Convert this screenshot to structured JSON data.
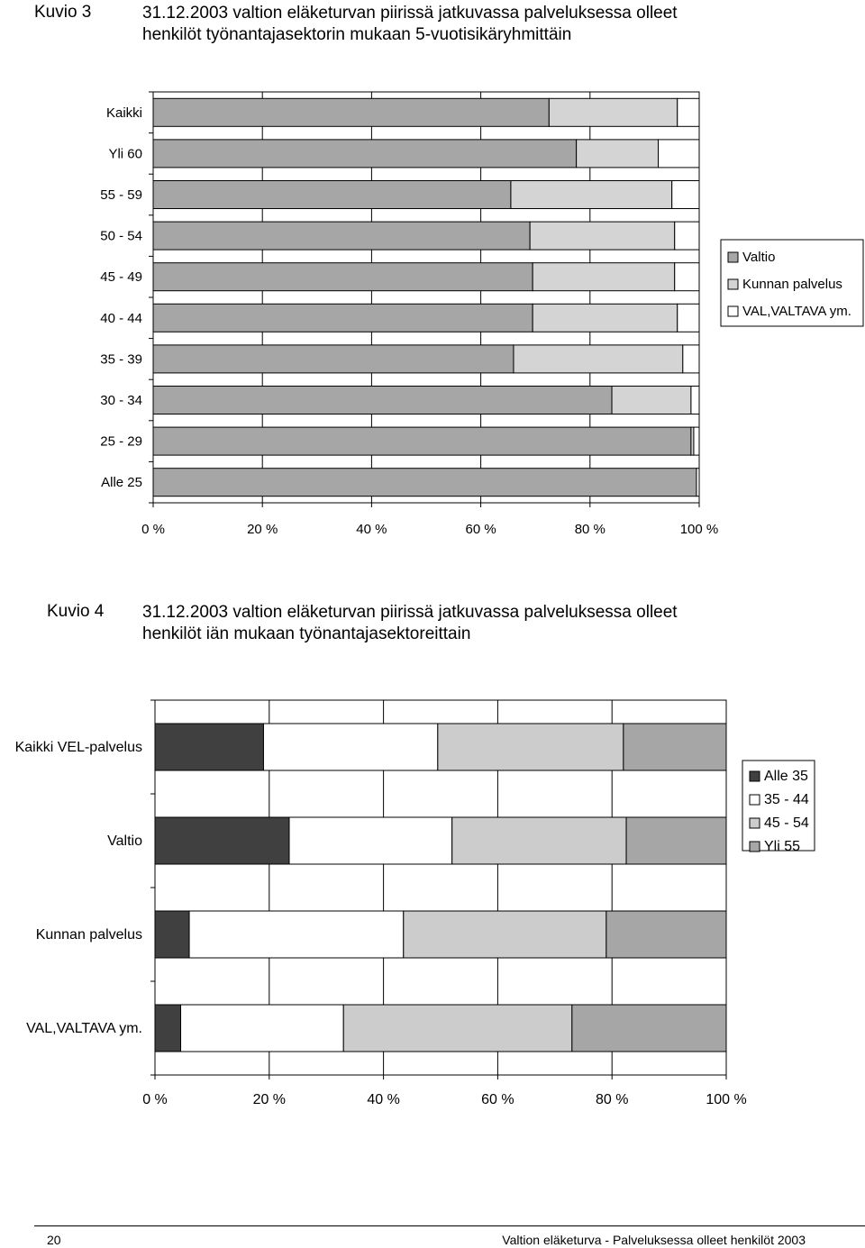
{
  "figures": [
    {
      "number": "Kuvio 3",
      "title_line1": "31.12.2003 valtion eläketurvan piirissä jatkuvassa palveluksessa olleet",
      "title_line2": "henkilöt työnantajasektorin mukaan 5-vuotisikäryhmittäin"
    },
    {
      "number": "Kuvio 4",
      "title_line1": "31.12.2003 valtion eläketurvan piirissä jatkuvassa palveluksessa olleet",
      "title_line2": "henkilöt iän mukaan työnantajasektoreittain"
    }
  ],
  "footer": {
    "page_number": "20",
    "publication": "Valtion eläketurva - Palveluksessa olleet henkilöt 2003"
  },
  "chart_data": [
    {
      "type": "bar",
      "stacked": true,
      "orientation": "horizontal",
      "percent_stacked": true,
      "categories": [
        "Kaikki",
        "Yli 60",
        "55 - 59",
        "50 - 54",
        "45 - 49",
        "40 - 44",
        "35 - 39",
        "30 - 34",
        "25 - 29",
        "Alle 25"
      ],
      "series": [
        {
          "name": "Valtio",
          "color": "#a6a6a6",
          "values": [
            72.5,
            77.5,
            65.5,
            69,
            69.5,
            69.5,
            66,
            84,
            98.5,
            99.5
          ]
        },
        {
          "name": "Kunnan palvelus",
          "color": "#d4d4d4",
          "values": [
            23.5,
            15,
            29.5,
            26.5,
            26,
            26.5,
            31,
            14.5,
            0.5,
            0
          ]
        },
        {
          "name": "VAL,VALTAVA ym.",
          "color": "#ffffff",
          "values": [
            4,
            7.5,
            5,
            4.5,
            4.5,
            4,
            3,
            1.5,
            1,
            0.5
          ]
        }
      ],
      "xlim": [
        0,
        100
      ],
      "xticks": [
        "0 %",
        "20 %",
        "40 %",
        "60 %",
        "80 %",
        "100 %"
      ],
      "legend_position": "right",
      "grid": true
    },
    {
      "type": "bar",
      "stacked": true,
      "orientation": "horizontal",
      "percent_stacked": true,
      "categories": [
        "Kaikki VEL-palvelus",
        "Valtio",
        "Kunnan palvelus",
        "VAL,VALTAVA ym."
      ],
      "series": [
        {
          "name": "Alle 35",
          "color": "#404040",
          "values": [
            19,
            23.5,
            6,
            4.5
          ]
        },
        {
          "name": "35 - 44",
          "color": "#ffffff",
          "values": [
            30.5,
            28.5,
            37.5,
            28.5
          ]
        },
        {
          "name": "45 - 54",
          "color": "#cccccc",
          "values": [
            32.5,
            30.5,
            35.5,
            40
          ]
        },
        {
          "name": "Yli 55",
          "color": "#a6a6a6",
          "values": [
            18,
            17.5,
            21,
            27
          ]
        }
      ],
      "xlim": [
        0,
        100
      ],
      "xticks": [
        "0 %",
        "20 %",
        "40 %",
        "60 %",
        "80 %",
        "100 %"
      ],
      "legend_position": "right",
      "grid": true
    }
  ]
}
